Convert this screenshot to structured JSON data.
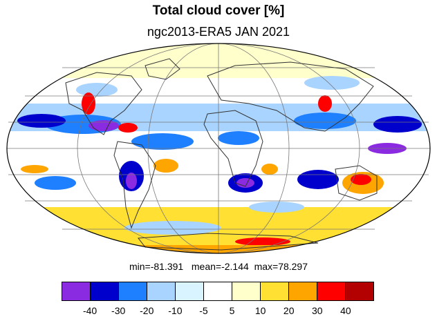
{
  "title": "Total cloud cover [%]",
  "subtitle": "ngc2013-ERA5 JAN 2021",
  "stats": {
    "min_label": "min=",
    "min_value": "-81.391",
    "mean_label": "mean=",
    "mean_value": "-2.144",
    "max_label": "max=",
    "max_value": "78.297"
  },
  "map": {
    "projection": "mollweide",
    "grid": true,
    "coastlines": true
  },
  "colorbar": {
    "colors": [
      "#8a2be2",
      "#0000cd",
      "#1e7fff",
      "#a8d4ff",
      "#d9f3ff",
      "#ffffff",
      "#ffffcc",
      "#ffe033",
      "#ffa500",
      "#ff0000",
      "#b30000"
    ],
    "labels": [
      "-40",
      "-30",
      "-20",
      "-10",
      "-5",
      "5",
      "10",
      "20",
      "30",
      "40"
    ]
  }
}
